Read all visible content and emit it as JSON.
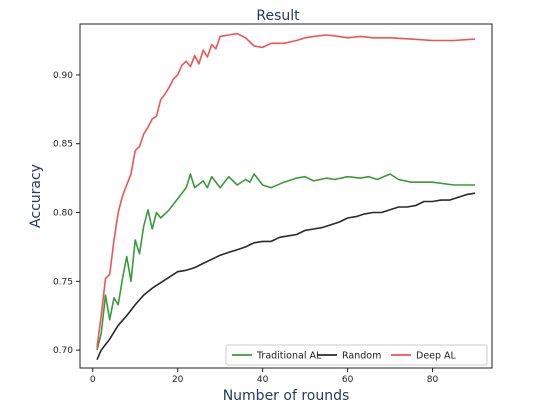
{
  "chart_data": {
    "type": "line",
    "title": "Result",
    "xlabel": "Number of rounds",
    "ylabel": "Accuracy",
    "xlim": [
      -3,
      94
    ],
    "ylim": [
      0.687,
      0.937
    ],
    "xticks": [
      0,
      20,
      40,
      60,
      80
    ],
    "yticks": [
      0.7,
      0.75,
      0.8,
      0.85,
      0.9
    ],
    "ytick_labels": [
      "0.70",
      "0.75",
      "0.80",
      "0.85",
      "0.90"
    ],
    "legend_position": "lower-right",
    "grid": false,
    "series": [
      {
        "name": "Traditional AL",
        "color": "#3a9a3a",
        "points": [
          [
            1,
            0.7
          ],
          [
            2,
            0.712
          ],
          [
            3,
            0.74
          ],
          [
            4,
            0.722
          ],
          [
            5,
            0.738
          ],
          [
            6,
            0.733
          ],
          [
            7,
            0.752
          ],
          [
            8,
            0.768
          ],
          [
            9,
            0.75
          ],
          [
            10,
            0.78
          ],
          [
            11,
            0.77
          ],
          [
            12,
            0.79
          ],
          [
            13,
            0.802
          ],
          [
            14,
            0.788
          ],
          [
            15,
            0.8
          ],
          [
            16,
            0.796
          ],
          [
            18,
            0.802
          ],
          [
            20,
            0.81
          ],
          [
            22,
            0.818
          ],
          [
            23,
            0.828
          ],
          [
            24,
            0.818
          ],
          [
            26,
            0.823
          ],
          [
            27,
            0.818
          ],
          [
            28,
            0.826
          ],
          [
            30,
            0.818
          ],
          [
            32,
            0.826
          ],
          [
            34,
            0.82
          ],
          [
            36,
            0.824
          ],
          [
            37,
            0.822
          ],
          [
            38,
            0.828
          ],
          [
            40,
            0.82
          ],
          [
            42,
            0.818
          ],
          [
            45,
            0.822
          ],
          [
            48,
            0.825
          ],
          [
            50,
            0.826
          ],
          [
            52,
            0.823
          ],
          [
            55,
            0.825
          ],
          [
            57,
            0.824
          ],
          [
            60,
            0.826
          ],
          [
            63,
            0.825
          ],
          [
            65,
            0.826
          ],
          [
            67,
            0.824
          ],
          [
            70,
            0.828
          ],
          [
            72,
            0.824
          ],
          [
            75,
            0.822
          ],
          [
            80,
            0.822
          ],
          [
            85,
            0.82
          ],
          [
            90,
            0.82
          ]
        ]
      },
      {
        "name": "Random",
        "color": "#2a2a2a",
        "points": [
          [
            1,
            0.693
          ],
          [
            2,
            0.7
          ],
          [
            4,
            0.708
          ],
          [
            6,
            0.718
          ],
          [
            8,
            0.725
          ],
          [
            10,
            0.733
          ],
          [
            12,
            0.74
          ],
          [
            14,
            0.745
          ],
          [
            16,
            0.749
          ],
          [
            18,
            0.753
          ],
          [
            20,
            0.757
          ],
          [
            22,
            0.758
          ],
          [
            24,
            0.76
          ],
          [
            26,
            0.763
          ],
          [
            28,
            0.766
          ],
          [
            30,
            0.769
          ],
          [
            32,
            0.771
          ],
          [
            34,
            0.773
          ],
          [
            36,
            0.775
          ],
          [
            38,
            0.778
          ],
          [
            40,
            0.779
          ],
          [
            42,
            0.779
          ],
          [
            44,
            0.782
          ],
          [
            46,
            0.783
          ],
          [
            48,
            0.784
          ],
          [
            50,
            0.787
          ],
          [
            52,
            0.788
          ],
          [
            54,
            0.789
          ],
          [
            56,
            0.791
          ],
          [
            58,
            0.793
          ],
          [
            60,
            0.796
          ],
          [
            62,
            0.797
          ],
          [
            64,
            0.799
          ],
          [
            66,
            0.8
          ],
          [
            68,
            0.8
          ],
          [
            70,
            0.802
          ],
          [
            72,
            0.804
          ],
          [
            74,
            0.804
          ],
          [
            76,
            0.805
          ],
          [
            78,
            0.808
          ],
          [
            80,
            0.808
          ],
          [
            82,
            0.809
          ],
          [
            84,
            0.809
          ],
          [
            86,
            0.811
          ],
          [
            88,
            0.813
          ],
          [
            90,
            0.814
          ]
        ]
      },
      {
        "name": "Deep AL",
        "color": "#ee5555",
        "points": [
          [
            1,
            0.702
          ],
          [
            2,
            0.725
          ],
          [
            3,
            0.752
          ],
          [
            4,
            0.755
          ],
          [
            5,
            0.78
          ],
          [
            6,
            0.8
          ],
          [
            7,
            0.812
          ],
          [
            8,
            0.82
          ],
          [
            9,
            0.828
          ],
          [
            10,
            0.845
          ],
          [
            11,
            0.848
          ],
          [
            12,
            0.857
          ],
          [
            13,
            0.862
          ],
          [
            14,
            0.868
          ],
          [
            15,
            0.87
          ],
          [
            16,
            0.882
          ],
          [
            17,
            0.886
          ],
          [
            18,
            0.891
          ],
          [
            19,
            0.897
          ],
          [
            20,
            0.9
          ],
          [
            21,
            0.907
          ],
          [
            22,
            0.91
          ],
          [
            23,
            0.906
          ],
          [
            24,
            0.914
          ],
          [
            25,
            0.908
          ],
          [
            26,
            0.918
          ],
          [
            27,
            0.913
          ],
          [
            28,
            0.922
          ],
          [
            29,
            0.919
          ],
          [
            30,
            0.928
          ],
          [
            32,
            0.929
          ],
          [
            34,
            0.93
          ],
          [
            36,
            0.927
          ],
          [
            38,
            0.921
          ],
          [
            40,
            0.92
          ],
          [
            42,
            0.923
          ],
          [
            45,
            0.923
          ],
          [
            48,
            0.925
          ],
          [
            50,
            0.927
          ],
          [
            52,
            0.928
          ],
          [
            55,
            0.929
          ],
          [
            58,
            0.928
          ],
          [
            60,
            0.927
          ],
          [
            63,
            0.928
          ],
          [
            66,
            0.927
          ],
          [
            70,
            0.927
          ],
          [
            75,
            0.926
          ],
          [
            80,
            0.925
          ],
          [
            85,
            0.925
          ],
          [
            90,
            0.926
          ]
        ]
      }
    ]
  }
}
